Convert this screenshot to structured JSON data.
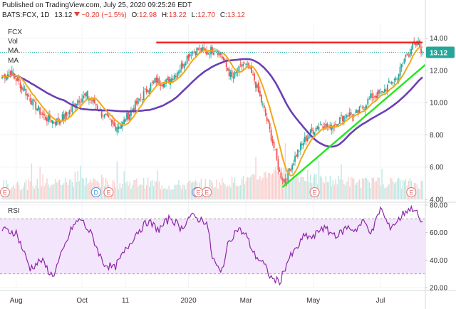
{
  "header": {
    "published": "Published on TradingView.com, July 25, 2020 09:25:26 EDT",
    "symbol": "BATS:FCX, 1D",
    "last": "13.12",
    "change": "−0.20 (−1.5%)",
    "o_label": "O:",
    "o_value": "12.98",
    "h_label": "H:",
    "h_value": "13.22",
    "l_label": "L:",
    "l_value": "12.70",
    "c_label": "C:",
    "c_value": "13.12"
  },
  "legend": [
    "FCX",
    "Vol",
    "MA",
    "MA"
  ],
  "rsi_label": "RSI",
  "colors": {
    "up": "#26a69a",
    "down": "#ef5350",
    "ma_fast": "#f2a818",
    "ma_slow": "#6a3fb5",
    "trend": "#22e81e",
    "resistance": "#f01e1e",
    "rsi_line": "#8e24aa",
    "rsi_band": "#f3e5fb",
    "price_badge": "#26a69a"
  },
  "chart_data": [
    {
      "type": "candlestick",
      "symbol": "BATS:FCX",
      "timeframe": "1D",
      "x_tick_labels": [
        "Aug",
        "Oct",
        "11",
        "2020",
        "Mar",
        "May",
        "Jul"
      ],
      "ylim": [
        4.0,
        14.6
      ],
      "y_ticks": [
        "14.00",
        "12.00",
        "10.00",
        "8.00",
        "6.00",
        "4.00"
      ],
      "last_price_badge": "13.12",
      "close_path": [
        [
          0,
          11.6
        ],
        [
          6,
          11.9
        ],
        [
          14,
          11.0
        ],
        [
          22,
          10.0
        ],
        [
          30,
          9.1
        ],
        [
          38,
          8.8
        ],
        [
          46,
          9.2
        ],
        [
          54,
          10.2
        ],
        [
          60,
          10.4
        ],
        [
          66,
          10.0
        ],
        [
          72,
          9.2
        ],
        [
          80,
          8.5
        ],
        [
          86,
          8.7
        ],
        [
          92,
          9.5
        ],
        [
          98,
          10.2
        ],
        [
          104,
          10.9
        ],
        [
          110,
          11.4
        ],
        [
          116,
          11.2
        ],
        [
          122,
          11.6
        ],
        [
          128,
          12.3
        ],
        [
          134,
          13.1
        ],
        [
          140,
          13.3
        ],
        [
          146,
          13.1
        ],
        [
          152,
          13.4
        ],
        [
          156,
          13.0
        ],
        [
          160,
          12.2
        ],
        [
          164,
          11.5
        ],
        [
          168,
          11.9
        ],
        [
          172,
          12.4
        ],
        [
          176,
          12.1
        ],
        [
          180,
          11.4
        ],
        [
          186,
          9.8
        ],
        [
          190,
          8.6
        ],
        [
          194,
          7.2
        ],
        [
          198,
          5.6
        ],
        [
          202,
          5.1
        ],
        [
          206,
          6.0
        ],
        [
          210,
          6.8
        ],
        [
          216,
          7.7
        ],
        [
          222,
          8.3
        ],
        [
          228,
          8.7
        ],
        [
          234,
          8.4
        ],
        [
          240,
          8.9
        ],
        [
          246,
          9.3
        ],
        [
          252,
          9.2
        ],
        [
          258,
          9.8
        ],
        [
          264,
          10.4
        ],
        [
          270,
          10.5
        ],
        [
          276,
          11.1
        ],
        [
          282,
          11.6
        ],
        [
          288,
          12.9
        ],
        [
          293,
          13.5
        ],
        [
          297,
          13.6
        ],
        [
          300,
          13.12
        ]
      ],
      "volume_path": [
        [
          0,
          0.25
        ],
        [
          20,
          0.3
        ],
        [
          40,
          0.35
        ],
        [
          60,
          0.4
        ],
        [
          80,
          0.3
        ],
        [
          100,
          0.35
        ],
        [
          120,
          0.25
        ],
        [
          140,
          0.3
        ],
        [
          160,
          0.35
        ],
        [
          180,
          0.45
        ],
        [
          195,
          0.75
        ],
        [
          205,
          0.6
        ],
        [
          220,
          0.45
        ],
        [
          240,
          0.4
        ],
        [
          260,
          0.35
        ],
        [
          280,
          0.35
        ],
        [
          300,
          0.3
        ]
      ],
      "moving_averages": [
        {
          "role": "fast",
          "span": 10
        },
        {
          "role": "slow",
          "span": 45
        }
      ],
      "annotations": {
        "resistance_line": {
          "from": [
            110,
            13.73
          ],
          "to": [
            300,
            13.73
          ]
        },
        "support_trendline": {
          "from": [
            200,
            4.75
          ],
          "to": [
            302,
            12.35
          ]
        },
        "dividend_markers_D": [
          67,
          139
        ],
        "earnings_markers_E": [
          2,
          76,
          140,
          146,
          223,
          292
        ]
      }
    },
    {
      "type": "line",
      "name": "RSI",
      "ylim": [
        20,
        80
      ],
      "y_ticks": [
        "80.00",
        "60.00",
        "40.00",
        "20.00"
      ],
      "band": [
        30,
        70
      ],
      "path": [
        [
          0,
          62
        ],
        [
          10,
          60
        ],
        [
          20,
          34
        ],
        [
          28,
          40
        ],
        [
          36,
          28
        ],
        [
          44,
          48
        ],
        [
          50,
          64
        ],
        [
          56,
          70
        ],
        [
          64,
          58
        ],
        [
          72,
          38
        ],
        [
          80,
          34
        ],
        [
          88,
          47
        ],
        [
          96,
          60
        ],
        [
          104,
          68
        ],
        [
          112,
          62
        ],
        [
          120,
          71
        ],
        [
          128,
          63
        ],
        [
          134,
          72
        ],
        [
          140,
          70
        ],
        [
          146,
          68
        ],
        [
          150,
          42
        ],
        [
          156,
          30
        ],
        [
          162,
          54
        ],
        [
          168,
          63
        ],
        [
          174,
          58
        ],
        [
          180,
          44
        ],
        [
          186,
          38
        ],
        [
          192,
          27
        ],
        [
          198,
          24
        ],
        [
          204,
          40
        ],
        [
          210,
          48
        ],
        [
          216,
          58
        ],
        [
          222,
          56
        ],
        [
          228,
          64
        ],
        [
          234,
          60
        ],
        [
          240,
          58
        ],
        [
          246,
          64
        ],
        [
          252,
          62
        ],
        [
          258,
          68
        ],
        [
          264,
          60
        ],
        [
          270,
          78
        ],
        [
          276,
          64
        ],
        [
          282,
          68
        ],
        [
          288,
          76
        ],
        [
          294,
          78
        ],
        [
          300,
          65
        ]
      ]
    }
  ]
}
